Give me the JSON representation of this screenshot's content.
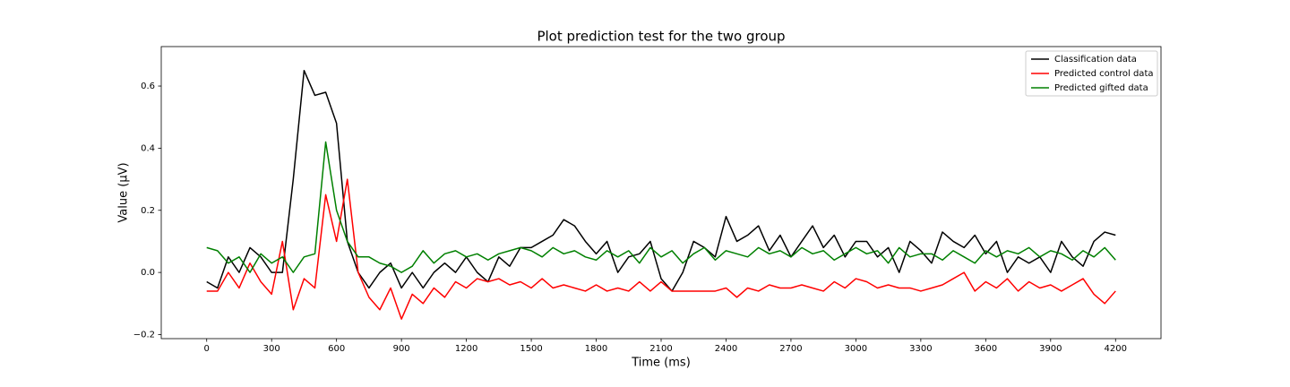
{
  "chart_data": {
    "type": "line",
    "title": "Plot prediction test for the two group",
    "x_label": "Time (ms)",
    "y_label": "Value (µV)",
    "xlim": [
      -210,
      4410
    ],
    "ylim": [
      -0.213,
      0.727
    ],
    "xticks": [
      0,
      300,
      600,
      900,
      1200,
      1500,
      1800,
      2100,
      2400,
      2700,
      3000,
      3300,
      3600,
      3900,
      4200
    ],
    "yticks": [
      {
        "value": -0.2,
        "label": "−0.2"
      },
      {
        "value": 0,
        "label": "0.0"
      },
      0.2,
      0.4,
      0.6
    ],
    "grid": false,
    "legend": "upper right",
    "x": [
      0,
      50,
      100,
      150,
      200,
      250,
      300,
      350,
      400,
      450,
      500,
      550,
      600,
      650,
      700,
      750,
      800,
      850,
      900,
      950,
      1000,
      1050,
      1100,
      1150,
      1200,
      1250,
      1300,
      1350,
      1400,
      1450,
      1500,
      1550,
      1600,
      1650,
      1700,
      1750,
      1800,
      1850,
      1900,
      1950,
      2000,
      2050,
      2100,
      2150,
      2200,
      2250,
      2300,
      2350,
      2400,
      2450,
      2500,
      2550,
      2600,
      2650,
      2700,
      2750,
      2800,
      2850,
      2900,
      2950,
      3000,
      3050,
      3100,
      3150,
      3200,
      3250,
      3300,
      3350,
      3400,
      3450,
      3500,
      3550,
      3600,
      3650,
      3700,
      3750,
      3800,
      3850,
      3900,
      3950,
      4000,
      4050,
      4100,
      4150,
      4200
    ],
    "series": [
      {
        "name": "Classification data",
        "color": "#000000",
        "values": [
          -0.03,
          -0.05,
          0.05,
          0.0,
          0.08,
          0.05,
          0.0,
          0.0,
          0.3,
          0.65,
          0.57,
          0.58,
          0.48,
          0.1,
          0.0,
          -0.05,
          0.0,
          0.03,
          -0.05,
          0.0,
          -0.05,
          0.0,
          0.03,
          0.0,
          0.05,
          0.0,
          -0.03,
          0.05,
          0.02,
          0.08,
          0.08,
          0.1,
          0.12,
          0.17,
          0.15,
          0.1,
          0.06,
          0.1,
          0.0,
          0.05,
          0.06,
          0.1,
          -0.02,
          -0.06,
          0.0,
          0.1,
          0.08,
          0.05,
          0.18,
          0.1,
          0.12,
          0.15,
          0.07,
          0.12,
          0.05,
          0.1,
          0.15,
          0.08,
          0.12,
          0.05,
          0.1,
          0.1,
          0.05,
          0.08,
          0.0,
          0.1,
          0.07,
          0.03,
          0.13,
          0.1,
          0.08,
          0.12,
          0.06,
          0.1,
          0.0,
          0.05,
          0.03,
          0.05,
          0.0,
          0.1,
          0.05,
          0.02,
          0.1,
          0.13,
          0.12
        ]
      },
      {
        "name": "Predicted control data",
        "color": "#ff0000",
        "values": [
          -0.06,
          -0.06,
          0.0,
          -0.05,
          0.03,
          -0.03,
          -0.07,
          0.1,
          -0.12,
          -0.02,
          -0.05,
          0.25,
          0.1,
          0.3,
          0.0,
          -0.08,
          -0.12,
          -0.05,
          -0.15,
          -0.07,
          -0.1,
          -0.05,
          -0.08,
          -0.03,
          -0.05,
          -0.02,
          -0.03,
          -0.02,
          -0.04,
          -0.03,
          -0.05,
          -0.02,
          -0.05,
          -0.04,
          -0.05,
          -0.06,
          -0.04,
          -0.06,
          -0.05,
          -0.06,
          -0.03,
          -0.06,
          -0.03,
          -0.06,
          -0.06,
          -0.06,
          -0.06,
          -0.06,
          -0.05,
          -0.08,
          -0.05,
          -0.06,
          -0.04,
          -0.05,
          -0.05,
          -0.04,
          -0.05,
          -0.06,
          -0.03,
          -0.05,
          -0.02,
          -0.03,
          -0.05,
          -0.04,
          -0.05,
          -0.05,
          -0.06,
          -0.05,
          -0.04,
          -0.02,
          0.0,
          -0.06,
          -0.03,
          -0.05,
          -0.02,
          -0.06,
          -0.03,
          -0.05,
          -0.04,
          -0.06,
          -0.04,
          -0.02,
          -0.07,
          -0.1,
          -0.06
        ]
      },
      {
        "name": "Predicted gifted data",
        "color": "#008000",
        "values": [
          0.08,
          0.07,
          0.03,
          0.05,
          0.0,
          0.06,
          0.03,
          0.05,
          0.0,
          0.05,
          0.06,
          0.42,
          0.2,
          0.1,
          0.05,
          0.05,
          0.03,
          0.02,
          0.0,
          0.02,
          0.07,
          0.03,
          0.06,
          0.07,
          0.05,
          0.06,
          0.04,
          0.06,
          0.07,
          0.08,
          0.07,
          0.05,
          0.08,
          0.06,
          0.07,
          0.05,
          0.04,
          0.07,
          0.05,
          0.07,
          0.03,
          0.08,
          0.05,
          0.07,
          0.03,
          0.06,
          0.08,
          0.04,
          0.07,
          0.06,
          0.05,
          0.08,
          0.06,
          0.07,
          0.05,
          0.08,
          0.06,
          0.07,
          0.04,
          0.06,
          0.08,
          0.06,
          0.07,
          0.03,
          0.08,
          0.05,
          0.06,
          0.06,
          0.04,
          0.07,
          0.05,
          0.03,
          0.07,
          0.05,
          0.07,
          0.06,
          0.08,
          0.05,
          0.07,
          0.06,
          0.04,
          0.07,
          0.05,
          0.08,
          0.04
        ]
      }
    ]
  }
}
